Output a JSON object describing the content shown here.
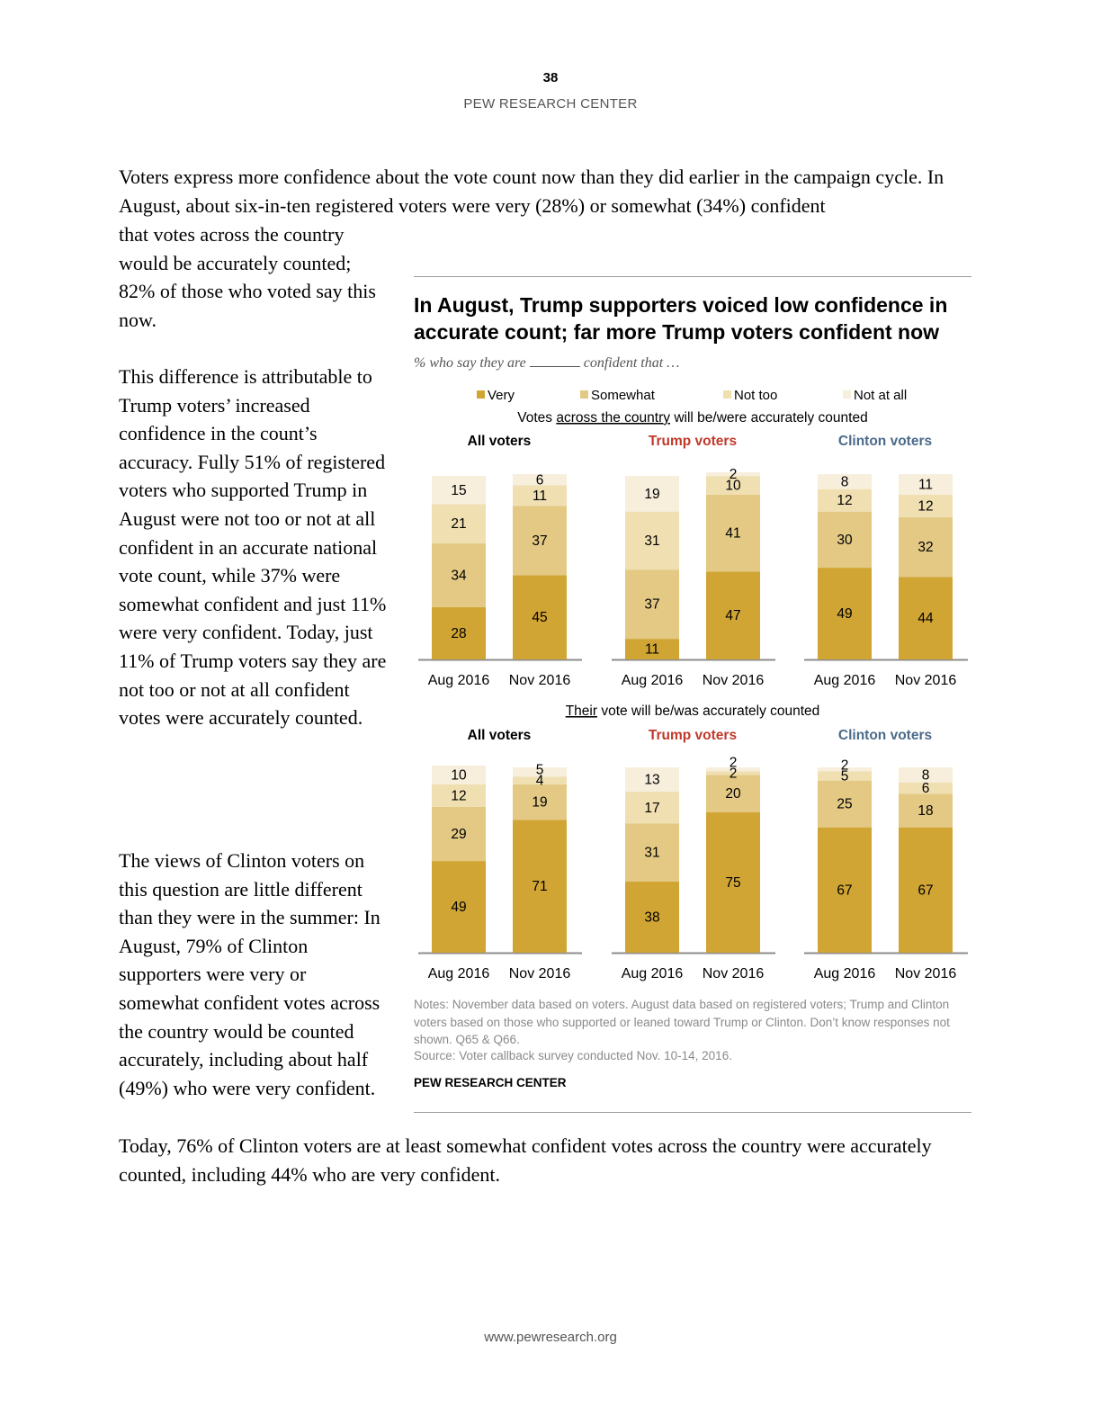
{
  "header": {
    "page_number": "38",
    "org": "PEW RESEARCH CENTER"
  },
  "body": {
    "para1": "Voters express more confidence about the vote count now than they did earlier in the campaign cycle. In August, about six-in-ten registered voters were very (28%) or somewhat (34%) confident",
    "para1_cont": "that votes across the country would be accurately counted; 82% of those who voted say this now.",
    "para2": "This difference is attributable to Trump voters’ increased confidence in the count’s accuracy. Fully 51% of registered voters who supported Trump in August were not too or not at all confident in an accurate national vote count, while 37% were somewhat confident and just 11% were very confident. Today, just 11% of Trump voters say they are not too or not at all confident votes were accurately counted.",
    "para3": "The views of Clinton voters on this question are little different than they were in the summer: In August, 79% of Clinton supporters were very or somewhat confident votes across the country would be counted accurately, including about half (49%) who were very confident.",
    "para4": "Today, 76% of Clinton voters are at least somewhat confident votes across the country were accurately counted, including 44% who are very confident."
  },
  "figure": {
    "title": "In August, Trump supporters voiced low confidence in accurate count; far more Trump voters confident now",
    "subtitle_pre": "% who say they are",
    "subtitle_post": "confident that …",
    "notes": "Notes: November data based on voters. August data based on registered voters; Trump and Clinton voters based on those who supported or leaned toward Trump or Clinton. Don’t know responses not shown. Q65 & Q66.",
    "source": "Source: Voter callback survey conducted Nov. 10-14, 2016.",
    "org": "PEW RESEARCH CENTER"
  },
  "colors": {
    "very": "#d1a534",
    "somewhat": "#e3c984",
    "not_too": "#efdfb1",
    "not_at_all": "#f7eedb",
    "all_voters": "#000000",
    "trump_voters": "#c0392b",
    "clinton_voters": "#4b6a8a",
    "axis": "#8c8c8c"
  },
  "chart_data": [
    {
      "type": "bar",
      "stacked": true,
      "title": "Votes across the country will be/were accurately counted",
      "title_underlined_part": "across the country",
      "series_names": [
        "Very",
        "Somewhat",
        "Not too",
        "Not at all"
      ],
      "groups": [
        {
          "name": "All voters",
          "bars": [
            {
              "category": "Aug 2016",
              "values": [
                28,
                34,
                21,
                15
              ]
            },
            {
              "category": "Nov 2016",
              "values": [
                45,
                37,
                11,
                6
              ]
            }
          ]
        },
        {
          "name": "Trump voters",
          "bars": [
            {
              "category": "Aug 2016",
              "values": [
                11,
                37,
                31,
                19
              ]
            },
            {
              "category": "Nov 2016",
              "values": [
                47,
                41,
                10,
                2
              ]
            }
          ]
        },
        {
          "name": "Clinton voters",
          "bars": [
            {
              "category": "Aug 2016",
              "values": [
                49,
                30,
                12,
                8
              ]
            },
            {
              "category": "Nov 2016",
              "values": [
                44,
                32,
                12,
                11
              ]
            }
          ]
        }
      ]
    },
    {
      "type": "bar",
      "stacked": true,
      "title": "Their vote will be/was accurately counted",
      "title_underlined_part": "Their",
      "series_names": [
        "Very",
        "Somewhat",
        "Not too",
        "Not at all"
      ],
      "groups": [
        {
          "name": "All voters",
          "bars": [
            {
              "category": "Aug 2016",
              "values": [
                49,
                29,
                12,
                10
              ]
            },
            {
              "category": "Nov 2016",
              "values": [
                71,
                19,
                4,
                5
              ]
            }
          ]
        },
        {
          "name": "Trump voters",
          "bars": [
            {
              "category": "Aug 2016",
              "values": [
                38,
                31,
                17,
                13
              ]
            },
            {
              "category": "Nov 2016",
              "values": [
                75,
                20,
                2,
                2
              ]
            }
          ]
        },
        {
          "name": "Clinton voters",
          "bars": [
            {
              "category": "Aug 2016",
              "values": [
                67,
                25,
                5,
                2
              ]
            },
            {
              "category": "Nov 2016",
              "values": [
                67,
                18,
                6,
                8
              ]
            }
          ]
        }
      ]
    }
  ],
  "footer": {
    "url": "www.pewresearch.org"
  }
}
